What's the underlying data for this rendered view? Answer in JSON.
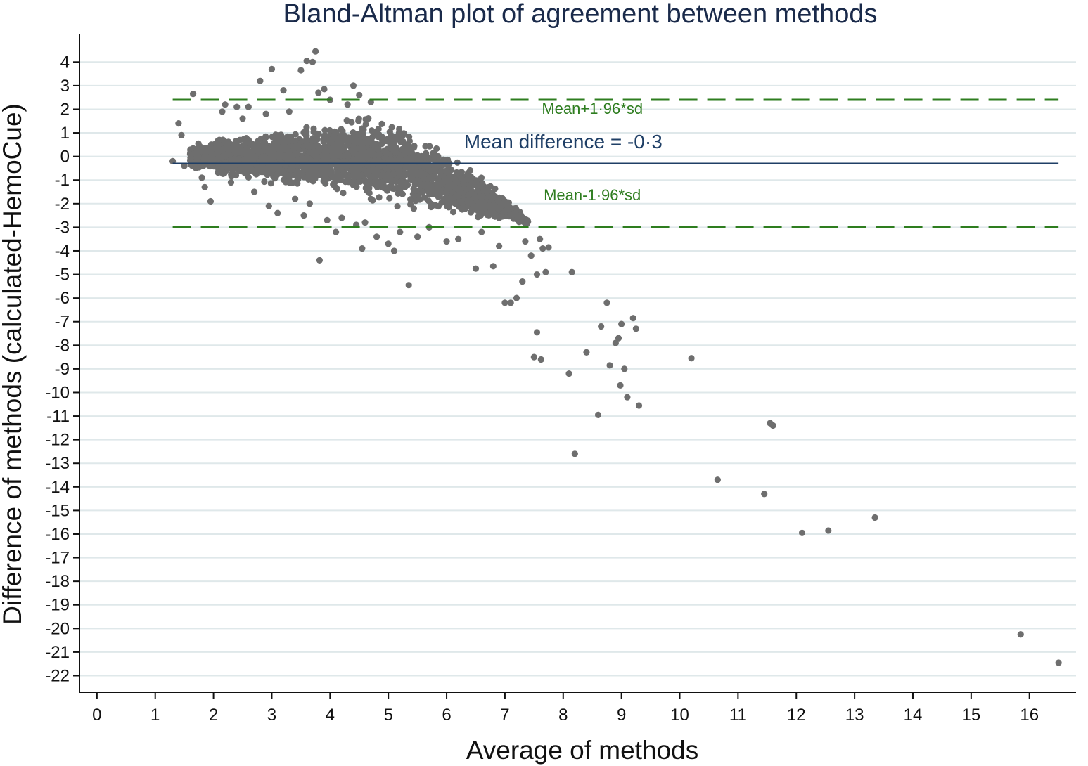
{
  "chart_data": {
    "type": "scatter",
    "title": "Bland-Altman plot of agreement between methods",
    "xlabel": "Average of methods",
    "ylabel": "Difference of methods (calculated-HemoCue)",
    "xlim": [
      -0.3,
      16.8
    ],
    "ylim": [
      -22.7,
      5.2
    ],
    "x_ticks": [
      0,
      1,
      2,
      3,
      4,
      5,
      6,
      7,
      8,
      9,
      10,
      11,
      12,
      13,
      14,
      15,
      16
    ],
    "y_ticks": [
      4,
      3,
      2,
      1,
      0,
      -1,
      -2,
      -3,
      -4,
      -5,
      -6,
      -7,
      -8,
      -9,
      -10,
      -11,
      -12,
      -13,
      -14,
      -15,
      -16,
      -17,
      -18,
      -19,
      -20,
      -21,
      -22
    ],
    "grid": "horizontal",
    "colors": {
      "points": "#6e6e6e",
      "limits": "#2e7d1f",
      "mean": "#1f3f66",
      "title": "#1a2a4a",
      "grid": "#dfe8ea"
    },
    "reference_lines": [
      {
        "name": "upper_limit",
        "y": 2.4,
        "label": "Mean+1·96*sd",
        "label_x": 8.5,
        "label_y": 1.8
      },
      {
        "name": "mean",
        "y": -0.3,
        "label": "Mean difference = -0·3",
        "label_x": 8.0,
        "label_y": 0.35
      },
      {
        "name": "lower_limit",
        "y": -3.0,
        "label": "Mean-1·96*sd",
        "label_x": 8.5,
        "label_y": -1.85
      }
    ],
    "reference_line_x_range": [
      1.3,
      16.5
    ],
    "points": [
      [
        1.3,
        -0.2
      ],
      [
        1.4,
        1.4
      ],
      [
        1.45,
        0.9
      ],
      [
        1.5,
        -0.4
      ],
      [
        1.6,
        0.1
      ],
      [
        1.65,
        2.65
      ],
      [
        1.7,
        -0.5
      ],
      [
        1.75,
        0.2
      ],
      [
        1.8,
        -0.9
      ],
      [
        1.85,
        -1.3
      ],
      [
        1.95,
        -1.9
      ],
      [
        2.1,
        0.7
      ],
      [
        2.15,
        1.9
      ],
      [
        2.2,
        2.2
      ],
      [
        2.3,
        -1.1
      ],
      [
        2.4,
        2.1
      ],
      [
        2.5,
        1.6
      ],
      [
        2.6,
        2.1
      ],
      [
        2.7,
        -1.5
      ],
      [
        2.8,
        3.2
      ],
      [
        2.9,
        1.8
      ],
      [
        2.95,
        -2.1
      ],
      [
        3.0,
        3.7
      ],
      [
        3.1,
        -2.4
      ],
      [
        3.2,
        2.8
      ],
      [
        3.3,
        1.9
      ],
      [
        3.4,
        -1.8
      ],
      [
        3.5,
        3.65
      ],
      [
        3.55,
        -2.5
      ],
      [
        3.6,
        4.05
      ],
      [
        3.65,
        -2.0
      ],
      [
        3.7,
        4.0
      ],
      [
        3.75,
        4.45
      ],
      [
        3.8,
        2.7
      ],
      [
        3.82,
        -4.4
      ],
      [
        3.9,
        2.85
      ],
      [
        3.95,
        -2.7
      ],
      [
        4.0,
        2.4
      ],
      [
        4.1,
        -3.2
      ],
      [
        4.2,
        -2.6
      ],
      [
        4.3,
        2.2
      ],
      [
        4.4,
        3.0
      ],
      [
        4.45,
        -2.9
      ],
      [
        4.5,
        2.6
      ],
      [
        4.55,
        -3.9
      ],
      [
        4.6,
        -2.8
      ],
      [
        4.7,
        2.3
      ],
      [
        4.8,
        -3.4
      ],
      [
        5.0,
        -3.7
      ],
      [
        5.1,
        -4.0
      ],
      [
        5.2,
        -3.2
      ],
      [
        5.35,
        -5.45
      ],
      [
        5.5,
        -3.4
      ],
      [
        5.7,
        -3.0
      ],
      [
        6.0,
        -3.6
      ],
      [
        6.2,
        -3.5
      ],
      [
        6.5,
        -4.75
      ],
      [
        6.6,
        -3.2
      ],
      [
        6.8,
        -4.65
      ],
      [
        6.9,
        -3.8
      ],
      [
        7.0,
        -6.2
      ],
      [
        7.1,
        -6.2
      ],
      [
        7.2,
        -6.0
      ],
      [
        7.3,
        -5.3
      ],
      [
        7.35,
        -3.6
      ],
      [
        7.45,
        -4.2
      ],
      [
        7.55,
        -5.0
      ],
      [
        7.6,
        -3.5
      ],
      [
        7.65,
        -3.9
      ],
      [
        7.7,
        -4.9
      ],
      [
        7.75,
        -3.85
      ],
      [
        7.55,
        -7.45
      ],
      [
        7.5,
        -8.5
      ],
      [
        7.62,
        -8.6
      ],
      [
        8.1,
        -9.2
      ],
      [
        8.15,
        -4.9
      ],
      [
        8.2,
        -12.6
      ],
      [
        8.4,
        -8.3
      ],
      [
        8.6,
        -10.95
      ],
      [
        8.65,
        -7.2
      ],
      [
        8.75,
        -6.2
      ],
      [
        8.8,
        -8.85
      ],
      [
        8.9,
        -7.9
      ],
      [
        8.95,
        -7.7
      ],
      [
        8.98,
        -9.7
      ],
      [
        9.0,
        -7.1
      ],
      [
        9.05,
        -9.0
      ],
      [
        9.1,
        -10.2
      ],
      [
        9.2,
        -6.85
      ],
      [
        9.25,
        -7.3
      ],
      [
        9.3,
        -10.55
      ],
      [
        10.2,
        -8.55
      ],
      [
        10.65,
        -13.7
      ],
      [
        11.45,
        -14.3
      ],
      [
        11.55,
        -11.3
      ],
      [
        11.6,
        -11.4
      ],
      [
        12.1,
        -15.95
      ],
      [
        12.55,
        -15.85
      ],
      [
        13.35,
        -15.3
      ],
      [
        15.85,
        -20.25
      ],
      [
        16.5,
        -21.45
      ]
    ],
    "dense_cloud": {
      "x_range": [
        1.6,
        7.4
      ],
      "upper_edge": [
        [
          1.6,
          0.6
        ],
        [
          2.2,
          0.95
        ],
        [
          3.0,
          1.2
        ],
        [
          4.0,
          1.6
        ],
        [
          4.5,
          1.9
        ],
        [
          5.0,
          1.8
        ],
        [
          5.5,
          1.2
        ],
        [
          6.0,
          0.4
        ],
        [
          6.5,
          -0.5
        ],
        [
          7.0,
          -1.6
        ],
        [
          7.4,
          -2.7
        ]
      ],
      "lower_edge": [
        [
          1.6,
          -0.6
        ],
        [
          2.2,
          -1.0
        ],
        [
          3.0,
          -1.4
        ],
        [
          4.0,
          -1.8
        ],
        [
          4.5,
          -2.0
        ],
        [
          5.0,
          -2.3
        ],
        [
          5.5,
          -2.5
        ],
        [
          6.0,
          -2.6
        ],
        [
          6.5,
          -2.7
        ],
        [
          7.0,
          -2.8
        ],
        [
          7.4,
          -2.9
        ]
      ]
    }
  }
}
